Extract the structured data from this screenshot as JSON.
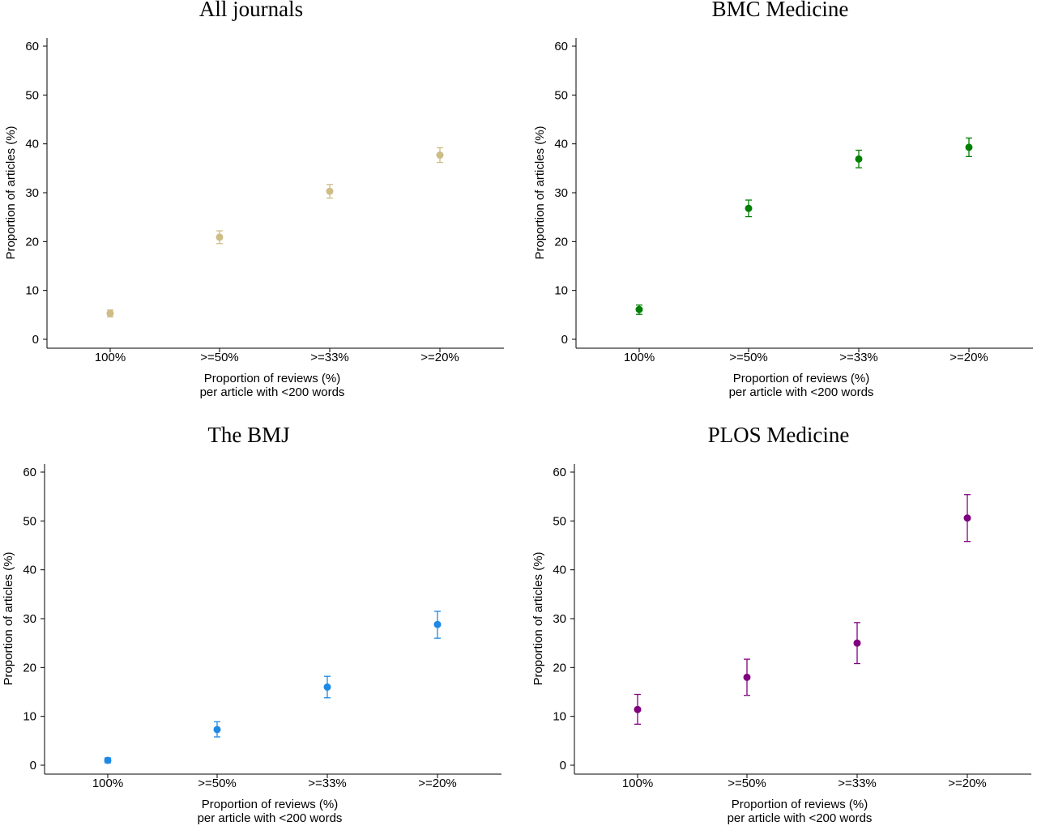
{
  "chart_data": [
    {
      "type": "scatter",
      "title": "All journals",
      "xlabel": [
        "Proportion of reviews (%)",
        "per article with <200 words"
      ],
      "ylabel": "Proportion of articles (%)",
      "categories": [
        "100%",
        ">=50%",
        ">=33%",
        ">=20%"
      ],
      "ylim": [
        0,
        60
      ],
      "yticks": [
        "0",
        "10",
        "20",
        "30",
        "40",
        "50",
        "60"
      ],
      "color": "#cdbd86",
      "values": [
        5.3,
        20.9,
        30.3,
        37.7
      ],
      "ci_low": [
        4.6,
        19.6,
        28.9,
        36.2
      ],
      "ci_high": [
        6.0,
        22.2,
        31.7,
        39.2
      ],
      "grid": false
    },
    {
      "type": "scatter",
      "title": "BMC Medicine",
      "xlabel": [
        "Proportion of reviews (%)",
        "per article with <200 words"
      ],
      "ylabel": "Proportion of articles (%)",
      "categories": [
        "100%",
        ">=50%",
        ">=33%",
        ">=20%"
      ],
      "ylim": [
        0,
        60
      ],
      "yticks": [
        "0",
        "10",
        "20",
        "30",
        "40",
        "50",
        "60"
      ],
      "color": "#008000",
      "values": [
        6.1,
        26.8,
        36.9,
        39.3
      ],
      "ci_low": [
        5.1,
        25.1,
        35.1,
        37.4
      ],
      "ci_high": [
        7.0,
        28.5,
        38.7,
        41.2
      ],
      "grid": false
    },
    {
      "type": "scatter",
      "title": "The BMJ",
      "xlabel": [
        "Proportion of reviews (%)",
        "per article with <200 words"
      ],
      "ylabel": "Proportion of articles (%)",
      "categories": [
        "100%",
        ">=50%",
        ">=33%",
        ">=20%"
      ],
      "ylim": [
        0,
        60
      ],
      "yticks": [
        "0",
        "10",
        "20",
        "30",
        "40",
        "50",
        "60"
      ],
      "color": "#1e88e5",
      "values": [
        1.0,
        7.3,
        16.0,
        28.8
      ],
      "ci_low": [
        0.5,
        5.8,
        13.8,
        26.0
      ],
      "ci_high": [
        1.5,
        8.9,
        18.2,
        31.5
      ],
      "grid": false
    },
    {
      "type": "scatter",
      "title": "PLOS Medicine",
      "xlabel": [
        "Proportion of reviews (%)",
        "per article with <200 words"
      ],
      "ylabel": "Proportion of articles (%)",
      "categories": [
        "100%",
        ">=50%",
        ">=33%",
        ">=20%"
      ],
      "ylim": [
        0,
        60
      ],
      "yticks": [
        "0",
        "10",
        "20",
        "30",
        "40",
        "50",
        "60"
      ],
      "color": "#800080",
      "values": [
        11.4,
        18.0,
        25.0,
        50.6
      ],
      "ci_low": [
        8.4,
        14.3,
        20.8,
        45.8
      ],
      "ci_high": [
        14.5,
        21.7,
        29.2,
        55.4
      ],
      "grid": false
    }
  ]
}
